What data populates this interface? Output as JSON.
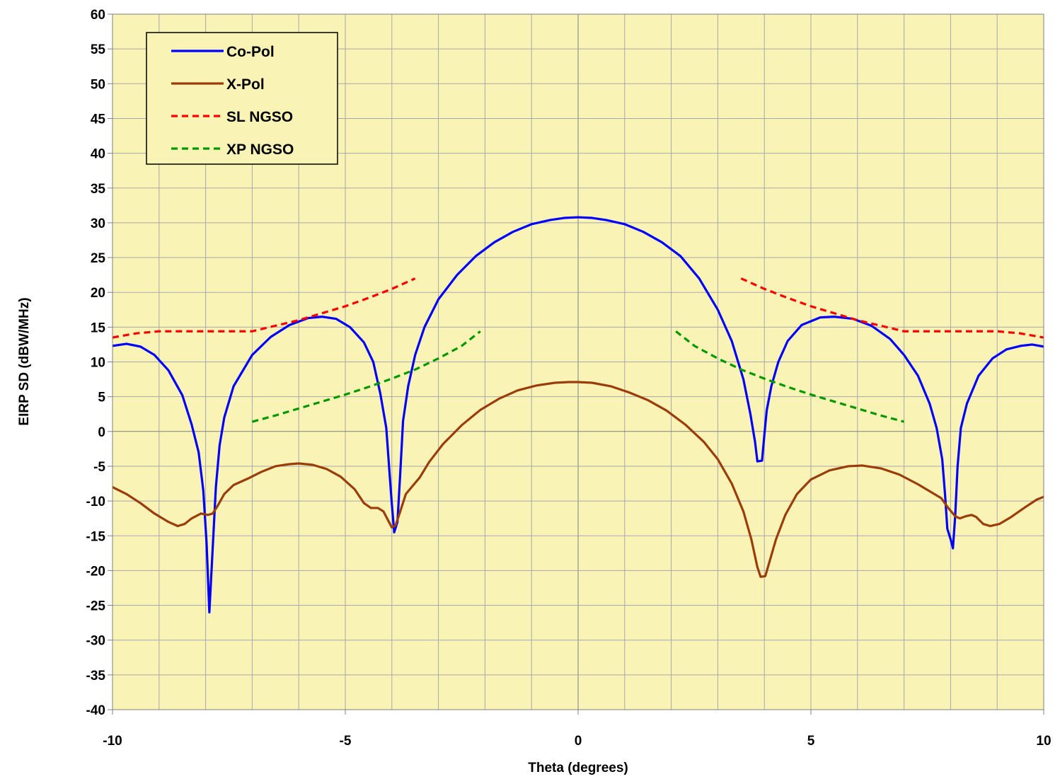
{
  "chart_data": {
    "type": "line",
    "title": "",
    "xlabel": "Theta (degrees)",
    "ylabel": "EIRP SD (dBW/MHz)",
    "xlim": [
      -10,
      10
    ],
    "ylim": [
      -40,
      60
    ],
    "xticks": [
      -10,
      -5,
      0,
      5,
      10
    ],
    "yticks": [
      60,
      55,
      50,
      45,
      40,
      35,
      30,
      25,
      20,
      15,
      10,
      5,
      0,
      -5,
      -10,
      -15,
      -20,
      -25,
      -30,
      -35,
      -40
    ],
    "grid": true,
    "minor_grid_x_step": 1,
    "legend_position": "top-left",
    "plot_background": "#FAF3B6",
    "series": [
      {
        "name": "Co-Pol",
        "color": "#0000FF",
        "dash": "solid",
        "points": [
          [
            -10,
            12.3
          ],
          [
            -9.7,
            12.6
          ],
          [
            -9.4,
            12.2
          ],
          [
            -9.1,
            11.0
          ],
          [
            -8.8,
            8.8
          ],
          [
            -8.5,
            5.2
          ],
          [
            -8.3,
            1.0
          ],
          [
            -8.15,
            -3.0
          ],
          [
            -8.05,
            -8.5
          ],
          [
            -7.98,
            -16.0
          ],
          [
            -7.92,
            -26.0
          ],
          [
            -7.85,
            -17.0
          ],
          [
            -7.78,
            -8.0
          ],
          [
            -7.7,
            -2.0
          ],
          [
            -7.6,
            2.0
          ],
          [
            -7.4,
            6.5
          ],
          [
            -7.0,
            11.0
          ],
          [
            -6.6,
            13.6
          ],
          [
            -6.2,
            15.3
          ],
          [
            -5.8,
            16.3
          ],
          [
            -5.5,
            16.5
          ],
          [
            -5.2,
            16.2
          ],
          [
            -4.9,
            15.0
          ],
          [
            -4.6,
            12.8
          ],
          [
            -4.4,
            10.0
          ],
          [
            -4.25,
            5.5
          ],
          [
            -4.12,
            0.5
          ],
          [
            -4.05,
            -6.0
          ],
          [
            -4.0,
            -10.5
          ],
          [
            -3.95,
            -14.5
          ],
          [
            -3.88,
            -13.0
          ],
          [
            -3.82,
            -6.0
          ],
          [
            -3.76,
            1.5
          ],
          [
            -3.65,
            6.5
          ],
          [
            -3.5,
            11.0
          ],
          [
            -3.3,
            15.0
          ],
          [
            -3.0,
            19.0
          ],
          [
            -2.6,
            22.5
          ],
          [
            -2.2,
            25.2
          ],
          [
            -1.8,
            27.2
          ],
          [
            -1.4,
            28.7
          ],
          [
            -1.0,
            29.8
          ],
          [
            -0.6,
            30.4
          ],
          [
            -0.3,
            30.7
          ],
          [
            0,
            30.8
          ],
          [
            0.3,
            30.7
          ],
          [
            0.6,
            30.4
          ],
          [
            1.0,
            29.8
          ],
          [
            1.4,
            28.7
          ],
          [
            1.8,
            27.2
          ],
          [
            2.2,
            25.2
          ],
          [
            2.6,
            22.0
          ],
          [
            3.0,
            17.5
          ],
          [
            3.3,
            13.0
          ],
          [
            3.55,
            7.5
          ],
          [
            3.7,
            2.5
          ],
          [
            3.8,
            -1.5
          ],
          [
            3.85,
            -4.3
          ],
          [
            3.95,
            -4.2
          ],
          [
            4.0,
            -0.5
          ],
          [
            4.05,
            3.0
          ],
          [
            4.15,
            6.5
          ],
          [
            4.3,
            10.0
          ],
          [
            4.5,
            13.0
          ],
          [
            4.8,
            15.3
          ],
          [
            5.2,
            16.4
          ],
          [
            5.5,
            16.5
          ],
          [
            5.9,
            16.2
          ],
          [
            6.3,
            15.2
          ],
          [
            6.7,
            13.3
          ],
          [
            7.0,
            11.0
          ],
          [
            7.3,
            8.0
          ],
          [
            7.55,
            4.0
          ],
          [
            7.7,
            0.5
          ],
          [
            7.82,
            -4.0
          ],
          [
            7.88,
            -9.0
          ],
          [
            7.93,
            -14.0
          ],
          [
            8.0,
            -15.5
          ],
          [
            8.05,
            -16.8
          ],
          [
            8.1,
            -12.0
          ],
          [
            8.15,
            -5.0
          ],
          [
            8.22,
            0.5
          ],
          [
            8.35,
            4.0
          ],
          [
            8.6,
            8.0
          ],
          [
            8.9,
            10.5
          ],
          [
            9.2,
            11.8
          ],
          [
            9.5,
            12.3
          ],
          [
            9.75,
            12.5
          ],
          [
            10,
            12.2
          ]
        ]
      },
      {
        "name": "X-Pol",
        "color": "#9B3D0A",
        "dash": "solid",
        "points": [
          [
            -10,
            -8.0
          ],
          [
            -9.7,
            -9.0
          ],
          [
            -9.4,
            -10.3
          ],
          [
            -9.1,
            -11.8
          ],
          [
            -8.8,
            -13.0
          ],
          [
            -8.6,
            -13.6
          ],
          [
            -8.45,
            -13.3
          ],
          [
            -8.3,
            -12.5
          ],
          [
            -8.1,
            -11.8
          ],
          [
            -7.95,
            -12.0
          ],
          [
            -7.85,
            -11.8
          ],
          [
            -7.75,
            -10.8
          ],
          [
            -7.6,
            -9.0
          ],
          [
            -7.4,
            -7.7
          ],
          [
            -7.1,
            -6.8
          ],
          [
            -6.8,
            -5.8
          ],
          [
            -6.5,
            -5.0
          ],
          [
            -6.2,
            -4.7
          ],
          [
            -6.0,
            -4.6
          ],
          [
            -5.7,
            -4.8
          ],
          [
            -5.4,
            -5.4
          ],
          [
            -5.1,
            -6.5
          ],
          [
            -4.8,
            -8.3
          ],
          [
            -4.6,
            -10.3
          ],
          [
            -4.45,
            -11.0
          ],
          [
            -4.3,
            -11.0
          ],
          [
            -4.18,
            -11.5
          ],
          [
            -4.08,
            -12.8
          ],
          [
            -4.0,
            -13.8
          ],
          [
            -3.92,
            -13.5
          ],
          [
            -3.82,
            -11.5
          ],
          [
            -3.7,
            -9.0
          ],
          [
            -3.55,
            -7.8
          ],
          [
            -3.4,
            -6.6
          ],
          [
            -3.2,
            -4.4
          ],
          [
            -2.9,
            -1.8
          ],
          [
            -2.5,
            0.9
          ],
          [
            -2.1,
            3.1
          ],
          [
            -1.7,
            4.7
          ],
          [
            -1.3,
            5.9
          ],
          [
            -0.9,
            6.6
          ],
          [
            -0.5,
            7.0
          ],
          [
            -0.2,
            7.1
          ],
          [
            0,
            7.1
          ],
          [
            0.3,
            7.0
          ],
          [
            0.7,
            6.5
          ],
          [
            1.1,
            5.6
          ],
          [
            1.5,
            4.5
          ],
          [
            1.9,
            3.0
          ],
          [
            2.3,
            1.0
          ],
          [
            2.7,
            -1.5
          ],
          [
            3.0,
            -4.0
          ],
          [
            3.3,
            -7.5
          ],
          [
            3.55,
            -11.5
          ],
          [
            3.72,
            -15.5
          ],
          [
            3.85,
            -19.5
          ],
          [
            3.92,
            -20.9
          ],
          [
            4.02,
            -20.8
          ],
          [
            4.12,
            -18.5
          ],
          [
            4.25,
            -15.5
          ],
          [
            4.45,
            -12.0
          ],
          [
            4.7,
            -9.0
          ],
          [
            5.0,
            -6.9
          ],
          [
            5.4,
            -5.6
          ],
          [
            5.8,
            -5.0
          ],
          [
            6.1,
            -4.9
          ],
          [
            6.5,
            -5.3
          ],
          [
            6.9,
            -6.2
          ],
          [
            7.3,
            -7.6
          ],
          [
            7.6,
            -8.8
          ],
          [
            7.8,
            -9.6
          ],
          [
            7.95,
            -11.0
          ],
          [
            8.1,
            -12.2
          ],
          [
            8.2,
            -12.5
          ],
          [
            8.32,
            -12.2
          ],
          [
            8.45,
            -12.0
          ],
          [
            8.55,
            -12.3
          ],
          [
            8.7,
            -13.3
          ],
          [
            8.85,
            -13.6
          ],
          [
            9.05,
            -13.3
          ],
          [
            9.3,
            -12.3
          ],
          [
            9.6,
            -10.9
          ],
          [
            9.85,
            -9.8
          ],
          [
            10,
            -9.4
          ]
        ]
      },
      {
        "name": "SL NGSO",
        "color": "#FF0000",
        "dash": "dashed",
        "segments": [
          [
            [
              -10,
              13.5
            ],
            [
              -9.5,
              14.1
            ],
            [
              -9.0,
              14.4
            ],
            [
              -8.0,
              14.4
            ],
            [
              -7.0,
              14.4
            ],
            [
              -6.5,
              15.2
            ],
            [
              -6.0,
              16.0
            ],
            [
              -5.5,
              17.0
            ],
            [
              -5.0,
              18.0
            ],
            [
              -4.5,
              19.2
            ],
            [
              -4.0,
              20.5
            ],
            [
              -3.5,
              22.0
            ]
          ],
          [
            [
              3.5,
              22.0
            ],
            [
              4.0,
              20.5
            ],
            [
              4.5,
              19.2
            ],
            [
              5.0,
              18.0
            ],
            [
              5.5,
              17.0
            ],
            [
              6.0,
              16.0
            ],
            [
              6.5,
              15.2
            ],
            [
              7.0,
              14.4
            ],
            [
              8.0,
              14.4
            ],
            [
              9.0,
              14.4
            ],
            [
              9.5,
              14.1
            ],
            [
              10,
              13.5
            ]
          ]
        ]
      },
      {
        "name": "XP NGSO",
        "color": "#009900",
        "dash": "dashed",
        "segments": [
          [
            [
              -7.0,
              1.4
            ],
            [
              -6.5,
              2.3
            ],
            [
              -6.0,
              3.3
            ],
            [
              -5.5,
              4.3
            ],
            [
              -5.0,
              5.3
            ],
            [
              -4.5,
              6.4
            ],
            [
              -4.0,
              7.6
            ],
            [
              -3.5,
              8.9
            ],
            [
              -3.0,
              10.5
            ],
            [
              -2.5,
              12.3
            ],
            [
              -2.1,
              14.4
            ]
          ],
          [
            [
              2.1,
              14.4
            ],
            [
              2.5,
              12.3
            ],
            [
              3.0,
              10.5
            ],
            [
              3.5,
              8.9
            ],
            [
              4.0,
              7.6
            ],
            [
              4.5,
              6.4
            ],
            [
              5.0,
              5.3
            ],
            [
              5.5,
              4.3
            ],
            [
              6.0,
              3.3
            ],
            [
              6.5,
              2.3
            ],
            [
              7.0,
              1.4
            ]
          ]
        ]
      }
    ]
  }
}
